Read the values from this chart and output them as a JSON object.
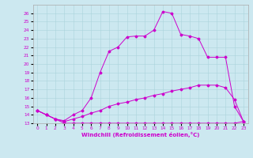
{
  "xlabel": "Windchill (Refroidissement éolien,°C)",
  "bg_color": "#cce8f0",
  "line_color": "#cc00cc",
  "xlim": [
    -0.5,
    23.5
  ],
  "ylim": [
    13,
    27
  ],
  "xticks": [
    0,
    1,
    2,
    3,
    4,
    5,
    6,
    7,
    8,
    9,
    10,
    11,
    12,
    13,
    14,
    15,
    16,
    17,
    18,
    19,
    20,
    21,
    22,
    23
  ],
  "yticks": [
    13,
    14,
    15,
    16,
    17,
    18,
    19,
    20,
    21,
    22,
    23,
    24,
    25,
    26
  ],
  "line1_x": [
    0,
    1,
    2,
    3,
    4,
    5,
    6,
    7,
    8,
    9,
    10,
    11,
    12,
    13,
    14,
    15,
    16,
    17,
    18,
    19,
    20,
    21,
    22,
    23
  ],
  "line1_y": [
    14.5,
    14.0,
    13.5,
    13.0,
    13.0,
    13.0,
    13.0,
    13.0,
    13.0,
    13.0,
    13.0,
    13.0,
    13.0,
    13.0,
    13.0,
    13.0,
    13.0,
    13.0,
    13.0,
    13.0,
    13.0,
    13.0,
    13.0,
    13.2
  ],
  "line2_x": [
    0,
    1,
    2,
    3,
    4,
    5,
    6,
    7,
    8,
    9,
    10,
    11,
    12,
    13,
    14,
    15,
    16,
    17,
    18,
    19,
    20,
    21,
    22,
    23
  ],
  "line2_y": [
    14.5,
    14.0,
    13.5,
    13.2,
    13.5,
    13.8,
    14.2,
    14.5,
    15.0,
    15.3,
    15.5,
    15.8,
    16.0,
    16.3,
    16.5,
    16.8,
    17.0,
    17.2,
    17.5,
    17.5,
    17.5,
    17.2,
    15.8,
    13.2
  ],
  "line3_x": [
    0,
    1,
    2,
    3,
    4,
    5,
    6,
    7,
    8,
    9,
    10,
    11,
    12,
    13,
    14,
    15,
    16,
    17,
    18,
    19,
    20,
    21,
    22,
    23
  ],
  "line3_y": [
    14.5,
    14.0,
    13.5,
    13.3,
    14.0,
    14.5,
    16.0,
    19.0,
    21.5,
    22.0,
    23.2,
    23.3,
    23.3,
    24.0,
    26.2,
    26.0,
    23.5,
    23.3,
    23.0,
    20.8,
    20.8,
    20.8,
    15.0,
    13.2
  ]
}
